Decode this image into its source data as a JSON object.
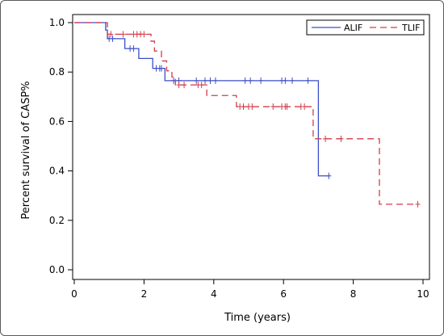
{
  "chart_data": {
    "type": "line",
    "chart_subtype": "kaplan-meier survival curve",
    "title": "",
    "xlabel": "Time  (years)",
    "ylabel": "Percent survival of CASP%",
    "xlim": [
      0,
      10
    ],
    "ylim": [
      0,
      1.0
    ],
    "xticks": [
      "0",
      "2",
      "4",
      "6",
      "8",
      "10"
    ],
    "yticks": [
      "0.0",
      "0.2",
      "0.4",
      "0.6",
      "0.8",
      "1.0"
    ],
    "grid": false,
    "legend_position": "top-right",
    "series": [
      {
        "name": "ALIF",
        "color": "#3a4fc8",
        "dash": "solid",
        "steps": [
          [
            0,
            1.0
          ],
          [
            0.9,
            0.97
          ],
          [
            0.95,
            0.935
          ],
          [
            1.45,
            0.895
          ],
          [
            1.85,
            0.855
          ],
          [
            2.25,
            0.815
          ],
          [
            2.6,
            0.765
          ],
          [
            6.95,
            0.765
          ],
          [
            7.0,
            0.38
          ],
          [
            7.3,
            0.38
          ]
        ],
        "censored": [
          [
            1.0,
            0.935
          ],
          [
            1.1,
            0.935
          ],
          [
            1.6,
            0.895
          ],
          [
            1.7,
            0.895
          ],
          [
            2.35,
            0.815
          ],
          [
            2.45,
            0.815
          ],
          [
            2.5,
            0.815
          ],
          [
            2.85,
            0.765
          ],
          [
            3.0,
            0.765
          ],
          [
            3.5,
            0.765
          ],
          [
            3.75,
            0.765
          ],
          [
            3.9,
            0.765
          ],
          [
            4.05,
            0.765
          ],
          [
            4.9,
            0.765
          ],
          [
            5.05,
            0.765
          ],
          [
            5.35,
            0.765
          ],
          [
            5.95,
            0.765
          ],
          [
            6.05,
            0.765
          ],
          [
            6.25,
            0.765
          ],
          [
            6.7,
            0.765
          ],
          [
            7.3,
            0.38
          ]
        ]
      },
      {
        "name": "TLIF",
        "color": "#d33b4a",
        "dash": "dashed",
        "steps": [
          [
            0,
            1.0
          ],
          [
            0.95,
            0.953
          ],
          [
            2.2,
            0.925
          ],
          [
            2.3,
            0.885
          ],
          [
            2.5,
            0.845
          ],
          [
            2.65,
            0.805
          ],
          [
            2.8,
            0.78
          ],
          [
            2.9,
            0.748
          ],
          [
            3.8,
            0.705
          ],
          [
            4.65,
            0.66
          ],
          [
            6.85,
            0.53
          ],
          [
            8.75,
            0.265
          ],
          [
            9.85,
            0.265
          ]
        ],
        "censored": [
          [
            1.05,
            0.953
          ],
          [
            1.4,
            0.953
          ],
          [
            1.7,
            0.953
          ],
          [
            1.8,
            0.953
          ],
          [
            1.9,
            0.953
          ],
          [
            2.0,
            0.953
          ],
          [
            3.0,
            0.748
          ],
          [
            3.15,
            0.748
          ],
          [
            3.55,
            0.748
          ],
          [
            3.65,
            0.748
          ],
          [
            4.75,
            0.66
          ],
          [
            4.85,
            0.66
          ],
          [
            5.0,
            0.66
          ],
          [
            5.1,
            0.66
          ],
          [
            5.7,
            0.66
          ],
          [
            5.95,
            0.66
          ],
          [
            6.05,
            0.66
          ],
          [
            6.1,
            0.66
          ],
          [
            6.5,
            0.66
          ],
          [
            6.6,
            0.66
          ],
          [
            7.2,
            0.53
          ],
          [
            7.65,
            0.53
          ],
          [
            9.85,
            0.265
          ]
        ]
      }
    ]
  }
}
